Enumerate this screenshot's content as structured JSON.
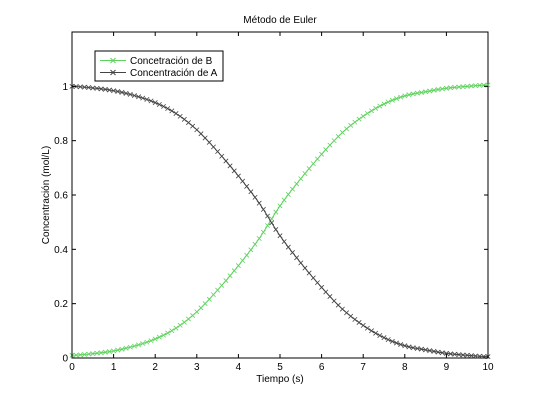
{
  "chart_data": {
    "type": "line",
    "title": "Método de Euler",
    "xlabel": "Tiempo (s)",
    "ylabel": "Concentración (mol/L)",
    "xlim": [
      0,
      10
    ],
    "ylim": [
      0,
      1.2
    ],
    "x_ticks": [
      0,
      1,
      2,
      3,
      4,
      5,
      6,
      7,
      8,
      9,
      10
    ],
    "y_ticks": [
      0,
      0.2,
      0.4,
      0.6,
      0.8,
      1
    ],
    "x_tick_labels": [
      "0",
      "1",
      "2",
      "3",
      "4",
      "5",
      "6",
      "7",
      "8",
      "9",
      "10"
    ],
    "y_tick_labels": [
      "0",
      "0.2",
      "0.4",
      "0.6",
      "0.8",
      "1"
    ],
    "grid": false,
    "legend_position": "top-left",
    "x": [
      0,
      0.5,
      1,
      1.5,
      2,
      2.5,
      3,
      3.5,
      4,
      4.5,
      5,
      5.5,
      6,
      6.5,
      7,
      7.5,
      8,
      8.5,
      9,
      9.5,
      10
    ],
    "series": [
      {
        "name": "Concetración de B",
        "color": "#5fd35f",
        "marker": "x",
        "values": [
          0.01,
          0.016,
          0.026,
          0.044,
          0.07,
          0.11,
          0.17,
          0.25,
          0.34,
          0.44,
          0.56,
          0.66,
          0.75,
          0.83,
          0.89,
          0.935,
          0.965,
          0.98,
          0.993,
          1.0,
          1.005
        ]
      },
      {
        "name": "Concentración de A",
        "color": "#444444",
        "marker": "x",
        "values": [
          1.0,
          0.994,
          0.984,
          0.966,
          0.94,
          0.9,
          0.84,
          0.76,
          0.67,
          0.57,
          0.45,
          0.35,
          0.26,
          0.18,
          0.12,
          0.075,
          0.045,
          0.03,
          0.017,
          0.01,
          0.005
        ]
      }
    ]
  }
}
